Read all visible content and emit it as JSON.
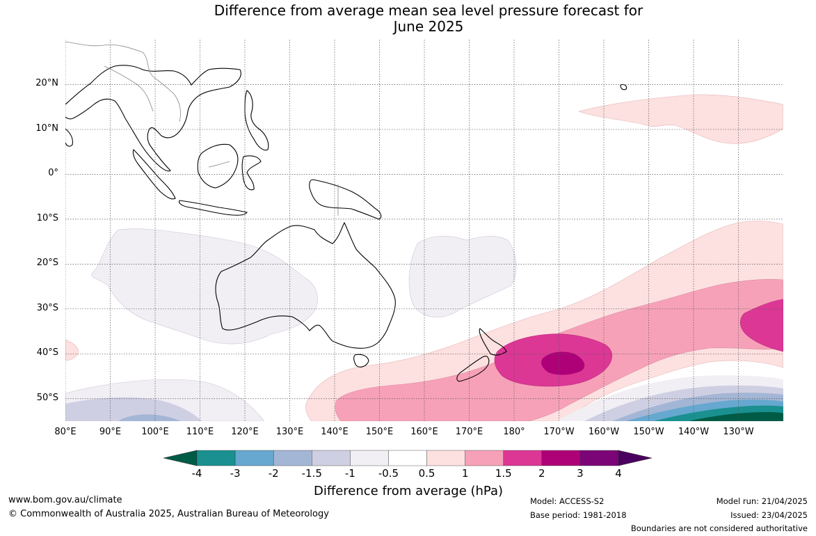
{
  "title": {
    "line1": "Difference from average mean sea level pressure forecast for",
    "line2": "June 2025"
  },
  "map": {
    "lat_labels": [
      "20°N",
      "10°N",
      "0°",
      "10°S",
      "20°S",
      "30°S",
      "40°S",
      "50°S"
    ],
    "lat_values": [
      20,
      10,
      0,
      -10,
      -20,
      -30,
      -40,
      -50
    ],
    "lon_labels": [
      "80°E",
      "90°E",
      "100°E",
      "110°E",
      "120°E",
      "130°E",
      "140°E",
      "150°E",
      "160°E",
      "170°E",
      "180°",
      "170°W",
      "160°W",
      "150°W",
      "140°W",
      "130°W"
    ],
    "lon_values": [
      80,
      90,
      100,
      110,
      120,
      130,
      140,
      150,
      160,
      170,
      180,
      190,
      200,
      210,
      220,
      230
    ],
    "lon_range": [
      80,
      240
    ],
    "lat_range": [
      -55,
      30
    ],
    "land_color": "#ffffff",
    "coast_color": "#000000",
    "border_color": "#888888",
    "grid_style": "dotted"
  },
  "colorbar": {
    "ticks": [
      "-4",
      "-3",
      "-2",
      "-1.5",
      "-1",
      "-0.5",
      "0.5",
      "1",
      "1.5",
      "2",
      "3",
      "4"
    ],
    "colors": [
      "#005b46",
      "#1a9090",
      "#66a8cf",
      "#a4b6d5",
      "#cfcfe3",
      "#f1eef4",
      "#ffffff",
      "#fde0e0",
      "#f7a1b8",
      "#dc3795",
      "#ae0178",
      "#7b0476",
      "#4a0060"
    ],
    "label": "Difference from average (hPa)"
  },
  "footer": {
    "website": "www.bom.gov.au/climate",
    "copyright": "© Commonwealth of Australia 2025, Australian Bureau of Meteorology",
    "model": "Model: ACCESS-S2",
    "base_period": "Base period: 1981-2018",
    "model_run": "Model run: 21/04/2025",
    "issued": "Issued: 23/04/2025",
    "disclaimer": "Boundaries are not considered authoritative"
  }
}
